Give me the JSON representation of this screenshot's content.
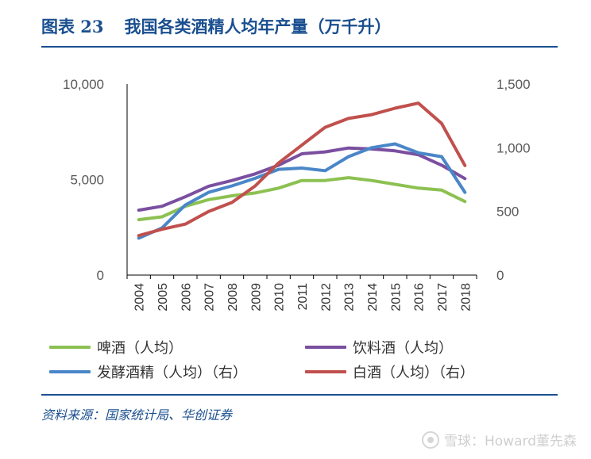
{
  "figure": {
    "number": "图表 23",
    "title": "我国各类酒精人均年产量（万千升）"
  },
  "source": "资料来源：国家统计局、华创证券",
  "watermark": "雪球：Howard董先森",
  "colors": {
    "accent": "#1a4f8f",
    "beer": "#8cc152",
    "fruit_wine": "#7b4fa0",
    "alcohol": "#4a86c8",
    "baijiu": "#c0504d"
  },
  "chart_data": {
    "type": "line",
    "x": [
      "2004",
      "2005",
      "2006",
      "2007",
      "2008",
      "2009",
      "2010",
      "2011",
      "2012",
      "2013",
      "2014",
      "2015",
      "2016",
      "2017",
      "2018"
    ],
    "y_left": {
      "min": 0,
      "max": 10000,
      "ticks": [
        "0",
        "5,000",
        "10,000"
      ]
    },
    "y_right": {
      "min": 0,
      "max": 1500,
      "ticks": [
        "0",
        "500",
        "1,000",
        "1,500"
      ]
    },
    "grid": false,
    "legend_position": "bottom",
    "series": [
      {
        "name": "啤酒（人均）",
        "axis": "left",
        "color": "#8cc152",
        "values": [
          2900,
          3050,
          3600,
          3950,
          4150,
          4300,
          4550,
          4950,
          4950,
          5100,
          4950,
          4750,
          4550,
          4450,
          3850
        ]
      },
      {
        "name": "饮料酒（人均）",
        "axis": "left",
        "color": "#7b4fa0",
        "values": [
          3400,
          3600,
          4100,
          4650,
          4950,
          5300,
          5750,
          6350,
          6450,
          6650,
          6600,
          6500,
          6300,
          5750,
          5050
        ]
      },
      {
        "name": "发酵酒精（人均）（右）",
        "axis": "right",
        "color": "#4a86c8",
        "values": [
          290,
          370,
          550,
          650,
          700,
          760,
          830,
          840,
          820,
          930,
          1000,
          1030,
          960,
          930,
          650
        ]
      },
      {
        "name": "白酒（人均）（右）",
        "axis": "right",
        "color": "#c0504d",
        "values": [
          310,
          360,
          400,
          500,
          570,
          700,
          880,
          1020,
          1160,
          1230,
          1260,
          1310,
          1350,
          1190,
          860
        ]
      }
    ]
  }
}
